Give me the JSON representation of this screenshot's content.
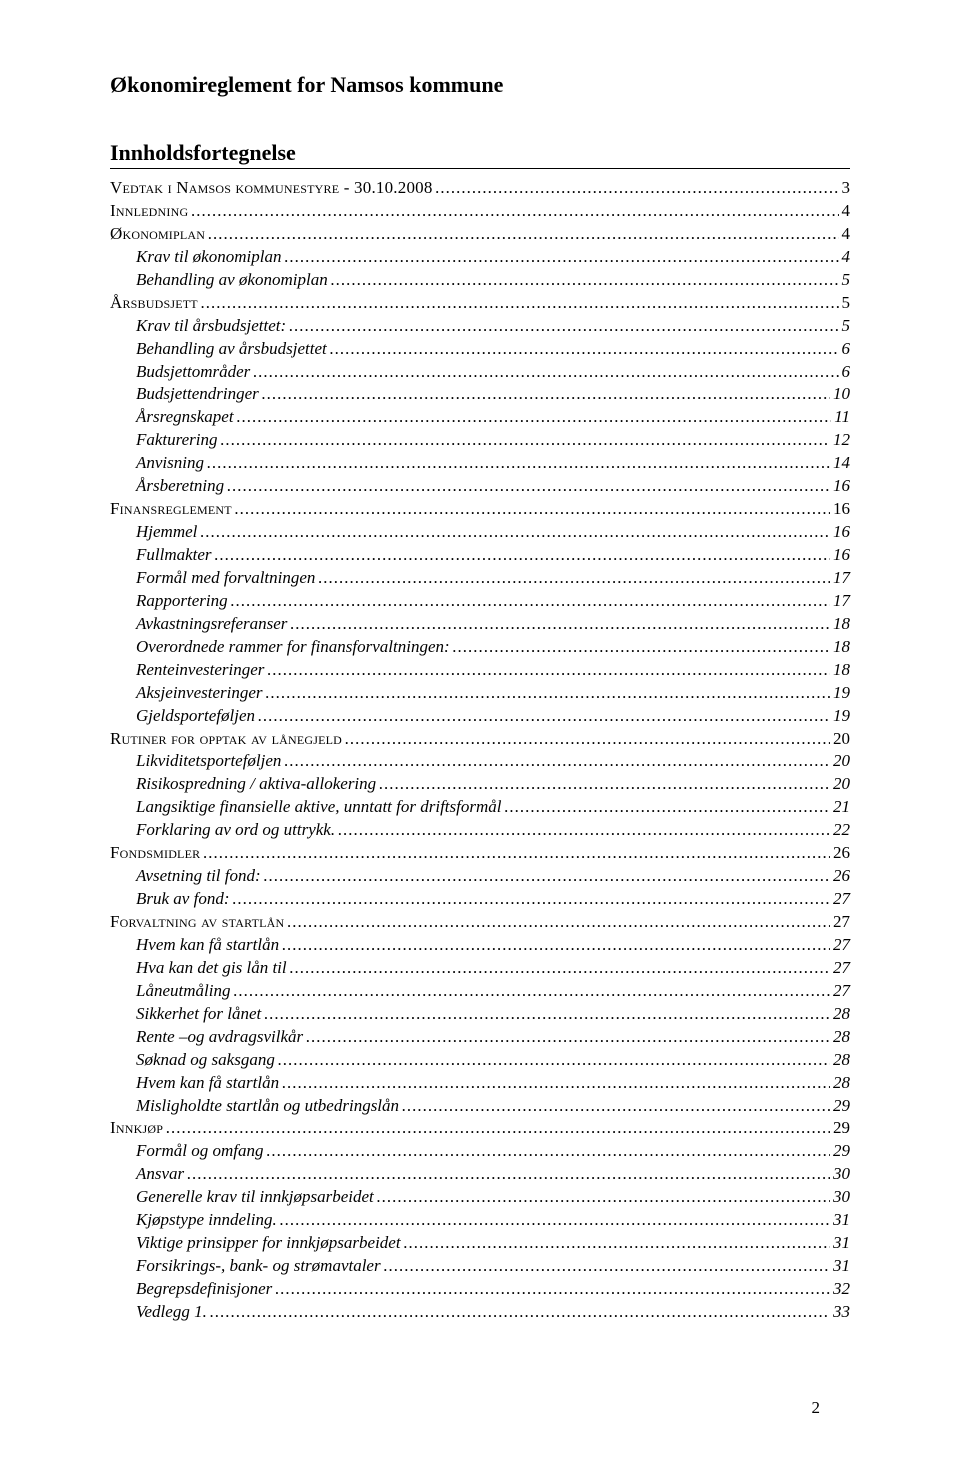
{
  "colors": {
    "background": "#ffffff",
    "text": "#000000",
    "rule": "#000000"
  },
  "typography": {
    "title_fontsize": 22,
    "body_fontsize": 17,
    "font_family": "Times New Roman"
  },
  "title": "Økonomireglement for Namsos kommune",
  "toc_heading": "Innholdsfortegnelse",
  "page_number": "2",
  "toc": [
    {
      "label": "Vedtak i Namsos kommunestyre - 30.10.2008",
      "page": "3",
      "level": 0,
      "style": "smallcaps"
    },
    {
      "label": "Innledning",
      "page": "4",
      "level": 0,
      "style": "smallcaps"
    },
    {
      "label": "Økonomiplan",
      "page": "4",
      "level": 0,
      "style": "smallcaps"
    },
    {
      "label": "Krav til økonomiplan",
      "page": "4",
      "level": 1,
      "style": "italic"
    },
    {
      "label": "Behandling av økonomiplan",
      "page": "5",
      "level": 1,
      "style": "italic"
    },
    {
      "label": "Årsbudsjett",
      "page": "5",
      "level": 0,
      "style": "smallcaps"
    },
    {
      "label": "Krav til årsbudsjettet:",
      "page": "5",
      "level": 1,
      "style": "italic"
    },
    {
      "label": "Behandling av årsbudsjettet",
      "page": "6",
      "level": 1,
      "style": "italic"
    },
    {
      "label": "Budsjettområder",
      "page": "6",
      "level": 1,
      "style": "italic"
    },
    {
      "label": "Budsjettendringer",
      "page": "10",
      "level": 1,
      "style": "italic"
    },
    {
      "label": "Årsregnskapet",
      "page": "11",
      "level": 1,
      "style": "italic"
    },
    {
      "label": "Fakturering",
      "page": "12",
      "level": 1,
      "style": "italic"
    },
    {
      "label": "Anvisning",
      "page": "14",
      "level": 1,
      "style": "italic"
    },
    {
      "label": "Årsberetning",
      "page": "16",
      "level": 1,
      "style": "italic"
    },
    {
      "label": "Finansreglement",
      "page": "16",
      "level": 0,
      "style": "smallcaps"
    },
    {
      "label": "Hjemmel",
      "page": "16",
      "level": 1,
      "style": "italic"
    },
    {
      "label": "Fullmakter",
      "page": "16",
      "level": 1,
      "style": "italic"
    },
    {
      "label": "Formål med forvaltningen",
      "page": "17",
      "level": 1,
      "style": "italic"
    },
    {
      "label": "Rapportering",
      "page": "17",
      "level": 1,
      "style": "italic"
    },
    {
      "label": "Avkastningsreferanser",
      "page": "18",
      "level": 1,
      "style": "italic"
    },
    {
      "label": "Overordnede rammer for finansforvaltningen:",
      "page": "18",
      "level": 1,
      "style": "italic"
    },
    {
      "label": "Renteinvesteringer",
      "page": "18",
      "level": 1,
      "style": "italic"
    },
    {
      "label": "Aksjeinvesteringer",
      "page": "19",
      "level": 1,
      "style": "italic"
    },
    {
      "label": "Gjeldsporteføljen",
      "page": "19",
      "level": 1,
      "style": "italic"
    },
    {
      "label": "Rutiner for opptak av lånegjeld",
      "page": "20",
      "level": 0,
      "style": "smallcaps"
    },
    {
      "label": "Likviditetsporteføljen",
      "page": "20",
      "level": 1,
      "style": "italic"
    },
    {
      "label": "Risikospredning / aktiva-allokering",
      "page": "20",
      "level": 1,
      "style": "italic"
    },
    {
      "label": "Langsiktige finansielle aktive, unntatt for driftsformål",
      "page": "21",
      "level": 1,
      "style": "italic"
    },
    {
      "label": "Forklaring av ord og uttrykk.",
      "page": "22",
      "level": 1,
      "style": "italic"
    },
    {
      "label": "Fondsmidler",
      "page": "26",
      "level": 0,
      "style": "smallcaps"
    },
    {
      "label": "Avsetning til fond:",
      "page": "26",
      "level": 1,
      "style": "italic"
    },
    {
      "label": "Bruk av fond:",
      "page": "27",
      "level": 1,
      "style": "italic"
    },
    {
      "label": "Forvaltning av startlån",
      "page": "27",
      "level": 0,
      "style": "smallcaps"
    },
    {
      "label": "Hvem kan få startlån",
      "page": "27",
      "level": 1,
      "style": "italic"
    },
    {
      "label": "Hva kan det gis lån til",
      "page": "27",
      "level": 1,
      "style": "italic"
    },
    {
      "label": "Låneutmåling",
      "page": "27",
      "level": 1,
      "style": "italic"
    },
    {
      "label": "Sikkerhet for lånet",
      "page": "28",
      "level": 1,
      "style": "italic"
    },
    {
      "label": "Rente –og avdragsvilkår",
      "page": "28",
      "level": 1,
      "style": "italic"
    },
    {
      "label": "Søknad og saksgang",
      "page": "28",
      "level": 1,
      "style": "italic"
    },
    {
      "label": "Hvem kan få startlån",
      "page": "28",
      "level": 1,
      "style": "italic"
    },
    {
      "label": "Misligholdte startlån og utbedringslån",
      "page": "29",
      "level": 1,
      "style": "italic"
    },
    {
      "label": "Innkjøp",
      "page": "29",
      "level": 0,
      "style": "smallcaps"
    },
    {
      "label": "Formål og omfang",
      "page": "29",
      "level": 1,
      "style": "italic"
    },
    {
      "label": "Ansvar",
      "page": "30",
      "level": 1,
      "style": "italic"
    },
    {
      "label": "Generelle krav til innkjøpsarbeidet",
      "page": "30",
      "level": 1,
      "style": "italic"
    },
    {
      "label": "Kjøpstype inndeling.",
      "page": "31",
      "level": 1,
      "style": "italic"
    },
    {
      "label": "Viktige prinsipper for innkjøpsarbeidet",
      "page": "31",
      "level": 1,
      "style": "italic"
    },
    {
      "label": "Forsikrings-, bank- og strømavtaler",
      "page": "31",
      "level": 1,
      "style": "italic"
    },
    {
      "label": "Begrepsdefinisjoner",
      "page": "32",
      "level": 1,
      "style": "italic"
    },
    {
      "label": "Vedlegg 1.",
      "page": "33",
      "level": 1,
      "style": "italic"
    }
  ]
}
